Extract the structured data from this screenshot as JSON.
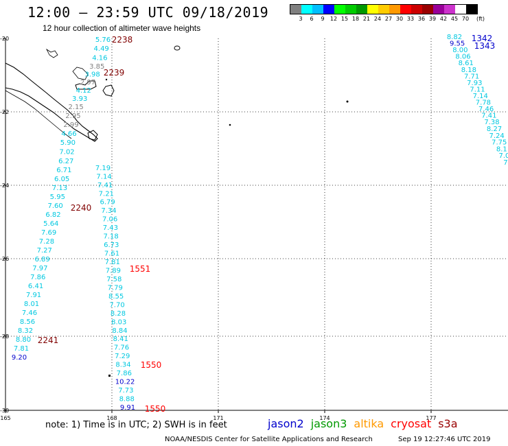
{
  "title": "12:00 – 23:59 UTC 09/18/2019",
  "subtitle": "12 hour collection of altimeter wave heights",
  "legend": {
    "colors": [
      "#808080",
      "#00ffff",
      "#00bfff",
      "#0000ff",
      "#00ff00",
      "#00cc00",
      "#009900",
      "#ffff00",
      "#ffcc00",
      "#ff9900",
      "#ff0000",
      "#cc0000",
      "#990000",
      "#990099",
      "#cc33cc",
      "#ffffff",
      "#000000"
    ],
    "labels": [
      "3",
      "6",
      "9",
      "12",
      "15",
      "18",
      "21",
      "24",
      "27",
      "30",
      "33",
      "36",
      "39",
      "42",
      "45",
      "70",
      "(ft)"
    ]
  },
  "map": {
    "lat_labels": [
      "-20",
      "-22",
      "-24",
      "-26",
      "-28",
      "-30"
    ],
    "lon_labels": [
      "165",
      "168",
      "171",
      "174",
      "177"
    ]
  },
  "tracks": [
    {
      "time": "2238",
      "sat": "s3a",
      "color": "#800000",
      "values": [
        {
          "v": "5.76",
          "c": "#00c8e0"
        },
        {
          "v": "4.49",
          "c": "#00c8e0"
        },
        {
          "v": "4.16",
          "c": "#00c8e0"
        },
        {
          "v": "3.85",
          "c": "#808080"
        },
        {
          "v": "3.98",
          "c": "#00c8e0"
        },
        {
          "v": "2.97",
          "c": "#808080"
        },
        {
          "v": "4.12",
          "c": "#00c8e0"
        },
        {
          "v": "3.93",
          "c": "#00c8e0"
        },
        {
          "v": "2.15",
          "c": "#808080"
        },
        {
          "v": "2.95",
          "c": "#808080"
        },
        {
          "v": "2.99",
          "c": "#808080"
        },
        {
          "v": "4.66",
          "c": "#00c8e0"
        },
        {
          "v": "5.90",
          "c": "#00c8e0"
        },
        {
          "v": "7.02",
          "c": "#00c8e0"
        },
        {
          "v": "6.27",
          "c": "#00c8e0"
        },
        {
          "v": "6.71",
          "c": "#00c8e0"
        },
        {
          "v": "6.05",
          "c": "#00c8e0"
        },
        {
          "v": "7.13",
          "c": "#00c8e0"
        },
        {
          "v": "5.95",
          "c": "#00c8e0"
        },
        {
          "v": "7.60",
          "c": "#00c8e0"
        },
        {
          "v": "6.82",
          "c": "#00c8e0"
        },
        {
          "v": "5.64",
          "c": "#00c8e0"
        },
        {
          "v": "7.69",
          "c": "#00c8e0"
        },
        {
          "v": "7.28",
          "c": "#00c8e0"
        },
        {
          "v": "7.27",
          "c": "#00c8e0"
        },
        {
          "v": "6.89",
          "c": "#00c8e0"
        },
        {
          "v": "7.97",
          "c": "#00c8e0"
        },
        {
          "v": "7.86",
          "c": "#00c8e0"
        },
        {
          "v": "6.41",
          "c": "#00c8e0"
        },
        {
          "v": "7.91",
          "c": "#00c8e0"
        },
        {
          "v": "8.01",
          "c": "#00c8e0"
        },
        {
          "v": "7.46",
          "c": "#00c8e0"
        },
        {
          "v": "8.56",
          "c": "#00c8e0"
        },
        {
          "v": "8.32",
          "c": "#00c8e0"
        },
        {
          "v": "8.80",
          "c": "#00c8e0"
        },
        {
          "v": "7.81",
          "c": "#00c8e0"
        },
        {
          "v": "9.20",
          "c": "#0000cc"
        }
      ]
    },
    {
      "time": "1551",
      "sat": "cryosat",
      "color": "#ff0000",
      "values": [
        {
          "v": "7.19",
          "c": "#00c8e0"
        },
        {
          "v": "7.14",
          "c": "#00c8e0"
        },
        {
          "v": "7.41",
          "c": "#00c8e0"
        },
        {
          "v": "7.21",
          "c": "#00c8e0"
        },
        {
          "v": "6.79",
          "c": "#00c8e0"
        },
        {
          "v": "7.34",
          "c": "#00c8e0"
        },
        {
          "v": "7.06",
          "c": "#00c8e0"
        },
        {
          "v": "7.43",
          "c": "#00c8e0"
        },
        {
          "v": "7.18",
          "c": "#00c8e0"
        },
        {
          "v": "6.73",
          "c": "#00c8e0"
        },
        {
          "v": "7.61",
          "c": "#00c8e0"
        },
        {
          "v": "7.81",
          "c": "#00c8e0"
        },
        {
          "v": "7.89",
          "c": "#00c8e0"
        },
        {
          "v": "7.58",
          "c": "#00c8e0"
        },
        {
          "v": "7.79",
          "c": "#00c8e0"
        },
        {
          "v": "8.55",
          "c": "#00c8e0"
        },
        {
          "v": "7.70",
          "c": "#00c8e0"
        },
        {
          "v": "8.28",
          "c": "#00c8e0"
        },
        {
          "v": "8.03",
          "c": "#00c8e0"
        },
        {
          "v": "8.84",
          "c": "#00c8e0"
        },
        {
          "v": "8.41",
          "c": "#00c8e0"
        },
        {
          "v": "7.76",
          "c": "#00c8e0"
        },
        {
          "v": "7.29",
          "c": "#00c8e0"
        },
        {
          "v": "8.34",
          "c": "#00c8e0"
        },
        {
          "v": "7.86",
          "c": "#00c8e0"
        },
        {
          "v": "10.22",
          "c": "#0000cc"
        },
        {
          "v": "7.73",
          "c": "#00c8e0"
        },
        {
          "v": "8.88",
          "c": "#00c8e0"
        },
        {
          "v": "9.91",
          "c": "#0000cc"
        }
      ]
    },
    {
      "time": "1342",
      "sat": "jason2",
      "color": "#0000cc",
      "values": [
        {
          "v": "8.82",
          "c": "#00c8e0"
        },
        {
          "v": "9.55",
          "c": "#0000cc"
        },
        {
          "v": "8.00",
          "c": "#00c8e0"
        },
        {
          "v": "8.06",
          "c": "#00c8e0"
        },
        {
          "v": "8.61",
          "c": "#00c8e0"
        },
        {
          "v": "8.18",
          "c": "#00c8e0"
        },
        {
          "v": "7.71",
          "c": "#00c8e0"
        },
        {
          "v": "7.93",
          "c": "#00c8e0"
        },
        {
          "v": "7.11",
          "c": "#00c8e0"
        },
        {
          "v": "7.14",
          "c": "#00c8e0"
        },
        {
          "v": "7.78",
          "c": "#00c8e0"
        },
        {
          "v": "7.46",
          "c": "#00c8e0"
        },
        {
          "v": "7.41",
          "c": "#00c8e0"
        },
        {
          "v": "7.38",
          "c": "#00c8e0"
        },
        {
          "v": "8.27",
          "c": "#00c8e0"
        },
        {
          "v": "7.24",
          "c": "#00c8e0"
        },
        {
          "v": "7.75",
          "c": "#00c8e0"
        },
        {
          "v": "8.1",
          "c": "#00c8e0"
        },
        {
          "v": "7.0",
          "c": "#00c8e0"
        },
        {
          "v": "7.",
          "c": "#00c8e0"
        }
      ]
    }
  ],
  "time_labels": [
    {
      "text": "2238",
      "color": "#800000"
    },
    {
      "text": "2239",
      "color": "#800000"
    },
    {
      "text": "2240",
      "color": "#800000"
    },
    {
      "text": "2241",
      "color": "#800000"
    },
    {
      "text": "1551",
      "color": "#ff0000"
    },
    {
      "text": "1550",
      "color": "#ff0000"
    },
    {
      "text": "1550",
      "color": "#ff0000"
    },
    {
      "text": "1342",
      "color": "#0000cc"
    },
    {
      "text": "1343",
      "color": "#0000cc"
    }
  ],
  "note": "note:  1) Time is in UTC;  2) SWH is in feet",
  "satellites": [
    {
      "name": "jason2",
      "color": "#0000cc"
    },
    {
      "name": "jason3",
      "color": "#009900"
    },
    {
      "name": "altika",
      "color": "#ff9900"
    },
    {
      "name": "cryosat",
      "color": "#ff0000"
    },
    {
      "name": "s3a",
      "color": "#990000"
    }
  ],
  "footer_left": "NOAA/NESDIS Center for Satellite Applications and Research",
  "footer_right": "Sep 19 12:27:46 UTC 2019"
}
